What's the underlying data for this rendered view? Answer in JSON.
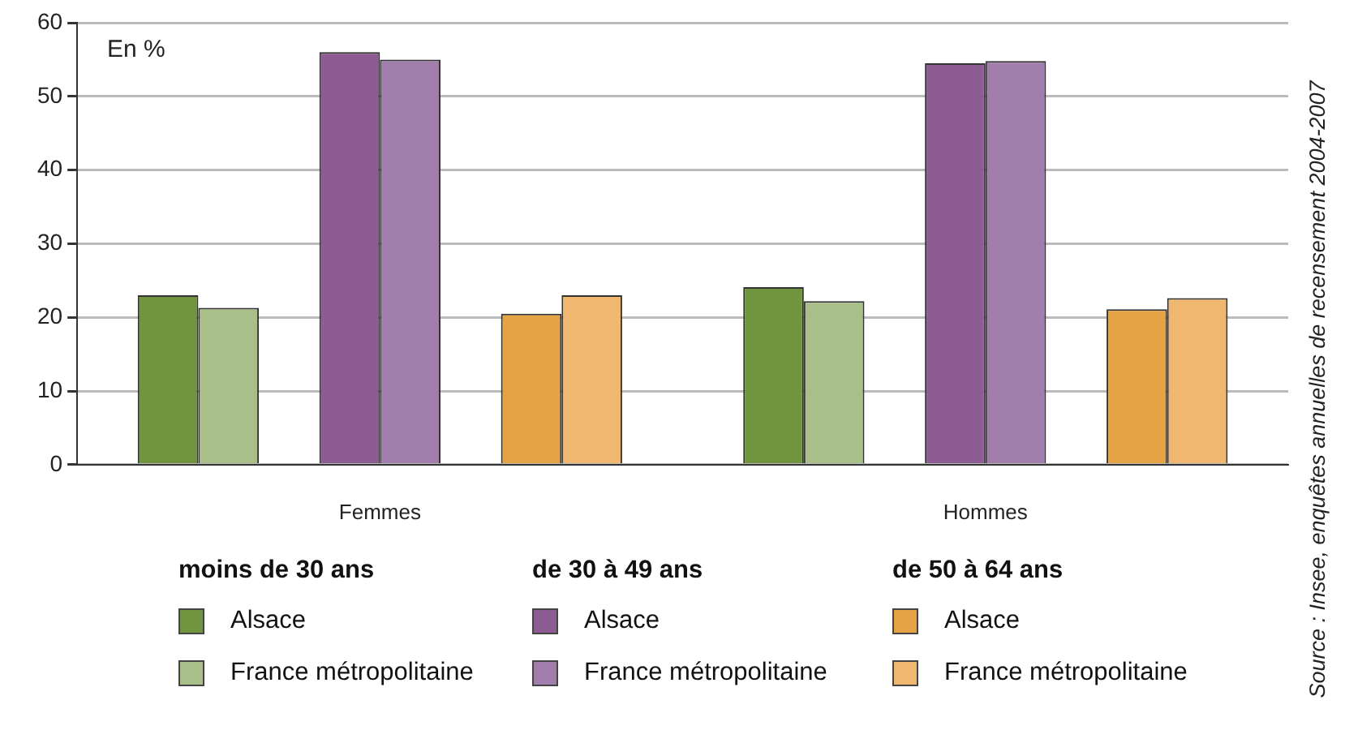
{
  "chart_data": {
    "type": "bar",
    "ylabel": "En %",
    "categories": [
      "Femmes",
      "Hommes"
    ],
    "series": [
      {
        "name": "Alsace",
        "color": "#71943f",
        "values": [
          23.0,
          24.1
        ]
      },
      {
        "name": "France métropolitaine",
        "color": "#a8bf8a",
        "values": [
          21.3,
          22.2
        ]
      },
      {
        "name": "Alsace",
        "color": "#8c5c93",
        "values": [
          56.0,
          54.5
        ]
      },
      {
        "name": "France métropolitaine",
        "color": "#a27eac",
        "values": [
          55.0,
          54.8
        ]
      },
      {
        "name": "Alsace",
        "color": "#e6a346",
        "values": [
          20.5,
          21.1
        ]
      },
      {
        "name": "France métropolitaine",
        "color": "#efb76f",
        "values": [
          23.0,
          22.6
        ]
      }
    ],
    "ylim": [
      0,
      60
    ],
    "yticks": [
      0,
      10,
      20,
      30,
      40,
      50,
      60
    ],
    "grid": "y",
    "legend": "bottom",
    "annotations": [
      "moins de 30 ans",
      "de 30 à 49 ans",
      "de 50 à 64 ans",
      "Source : Insee, enquêtes annuelles  de recensement 2004-2007"
    ]
  }
}
